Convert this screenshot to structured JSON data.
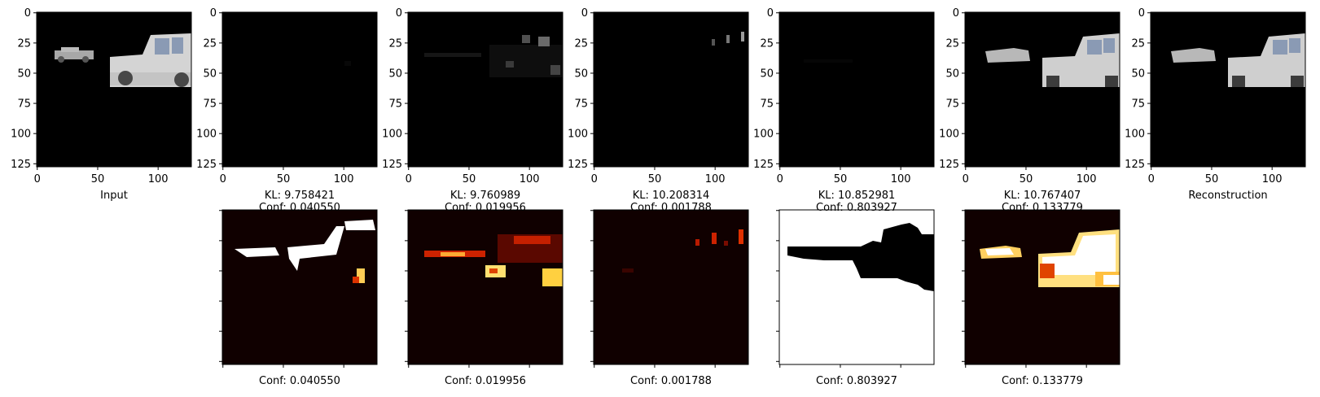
{
  "top_row": [
    {
      "label": "Input",
      "kl": "",
      "conf": ""
    },
    {
      "label": "",
      "kl": "KL: 9.758421",
      "conf": "Conf: 0.040550"
    },
    {
      "label": "",
      "kl": "KL: 9.760989",
      "conf": "Conf: 0.019956"
    },
    {
      "label": "",
      "kl": "KL: 10.208314",
      "conf": "Conf: 0.001788"
    },
    {
      "label": "",
      "kl": "KL: 10.852981",
      "conf": "Conf: 0.803927"
    },
    {
      "label": "",
      "kl": "KL: 10.767407",
      "conf": "Conf: 0.133779"
    },
    {
      "label": "Reconstruction",
      "kl": "",
      "conf": ""
    }
  ],
  "bottom_row": [
    {
      "conf": "Conf: 0.040550"
    },
    {
      "conf": "Conf: 0.019956"
    },
    {
      "conf": "Conf: 0.001788"
    },
    {
      "conf": "Conf: 0.803927"
    },
    {
      "conf": "Conf: 0.133779"
    }
  ],
  "axes": {
    "x_ticks": [
      "0",
      "50",
      "100"
    ],
    "y_ticks": [
      "0",
      "25",
      "50",
      "75",
      "100",
      "125"
    ]
  },
  "chart_data": [
    {
      "type": "heatmap",
      "title": "",
      "xlabel": "Input",
      "ylabel": "",
      "xlim": [
        0,
        127
      ],
      "ylim": [
        127,
        0
      ],
      "x_ticks": [
        0,
        50,
        100
      ],
      "y_ticks": [
        0,
        25,
        50,
        75,
        100,
        125
      ],
      "content": "rgb image: two grey cars on black background"
    },
    {
      "type": "heatmap",
      "title": "",
      "xlabel": "KL: 9.758421 Conf: 0.040550",
      "xlim": [
        0,
        127
      ],
      "ylim": [
        127,
        0
      ],
      "x_ticks": [
        0,
        50,
        100
      ],
      "y_ticks": [
        0,
        25,
        50,
        75,
        100,
        125
      ],
      "content": "rgb image: nearly black"
    },
    {
      "type": "heatmap",
      "title": "",
      "xlabel": "KL: 9.760989 Conf: 0.019956",
      "xlim": [
        0,
        127
      ],
      "ylim": [
        127,
        0
      ],
      "x_ticks": [
        0,
        50,
        100
      ],
      "y_ticks": [
        0,
        25,
        50,
        75,
        100,
        125
      ],
      "content": "rgb image: faint car outline"
    },
    {
      "type": "heatmap",
      "title": "",
      "xlabel": "KL: 10.208314 Conf: 0.001788",
      "xlim": [
        0,
        127
      ],
      "ylim": [
        127,
        0
      ],
      "x_ticks": [
        0,
        50,
        100
      ],
      "y_ticks": [
        0,
        25,
        50,
        75,
        100,
        125
      ],
      "content": "rgb image: nearly black with few bright pixels"
    },
    {
      "type": "heatmap",
      "title": "",
      "xlabel": "KL: 10.852981 Conf: 0.803927",
      "xlim": [
        0,
        127
      ],
      "ylim": [
        127,
        0
      ],
      "x_ticks": [
        0,
        50,
        100
      ],
      "y_ticks": [
        0,
        25,
        50,
        75,
        100,
        125
      ],
      "content": "rgb image: nearly black"
    },
    {
      "type": "heatmap",
      "title": "",
      "xlabel": "KL: 10.767407 Conf: 0.133779",
      "xlim": [
        0,
        127
      ],
      "ylim": [
        127,
        0
      ],
      "x_ticks": [
        0,
        50,
        100
      ],
      "y_ticks": [
        0,
        25,
        50,
        75,
        100,
        125
      ],
      "content": "rgb image: two grey cars"
    },
    {
      "type": "heatmap",
      "title": "",
      "xlabel": "Reconstruction",
      "xlim": [
        0,
        127
      ],
      "ylim": [
        127,
        0
      ],
      "x_ticks": [
        0,
        50,
        100
      ],
      "y_ticks": [
        0,
        25,
        50,
        75,
        100,
        125
      ],
      "content": "rgb image: two grey cars (reconstruction)"
    },
    {
      "type": "heatmap",
      "xlabel": "Conf: 0.040550",
      "colormap": "hot",
      "content": "mask heatmap"
    },
    {
      "type": "heatmap",
      "xlabel": "Conf: 0.019956",
      "colormap": "hot",
      "content": "mask heatmap"
    },
    {
      "type": "heatmap",
      "xlabel": "Conf: 0.001788",
      "colormap": "hot",
      "content": "mask heatmap"
    },
    {
      "type": "heatmap",
      "xlabel": "Conf: 0.803927",
      "colormap": "hot",
      "content": "mask heatmap, mostly white"
    },
    {
      "type": "heatmap",
      "xlabel": "Conf: 0.133779",
      "colormap": "hot",
      "content": "mask heatmap"
    }
  ],
  "colors": {
    "background": "#000000",
    "car": "#c8c8c8",
    "car_window": "#8090a8",
    "heat_dark": "#100000",
    "heat_white": "#ffffff",
    "heat_yellow": "#ffe080",
    "heat_red": "#c02000"
  }
}
